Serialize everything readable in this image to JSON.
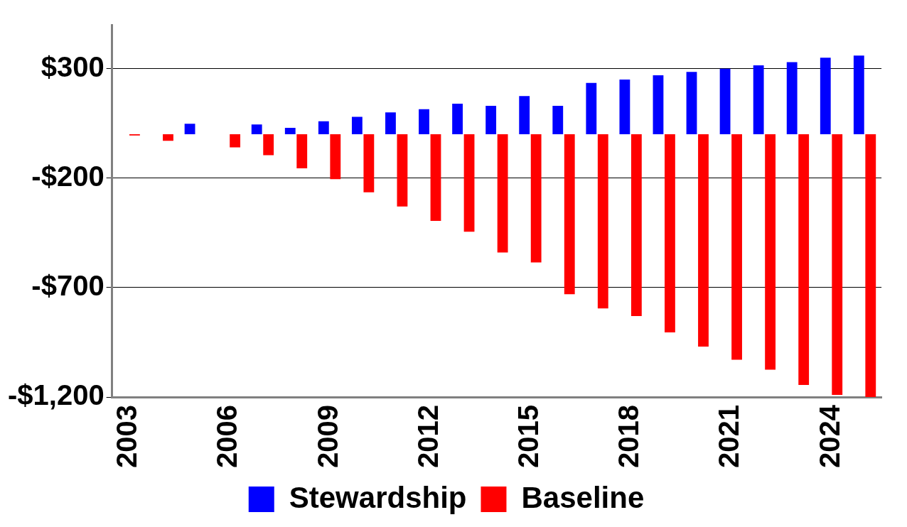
{
  "chart_data": {
    "type": "bar",
    "categories": [
      "2003",
      null,
      null,
      "2006",
      null,
      null,
      "2009",
      null,
      null,
      "2012",
      null,
      null,
      "2015",
      null,
      null,
      "2018",
      null,
      null,
      "2021",
      null,
      null,
      "2024",
      null
    ],
    "series": [
      {
        "name": "Stewardship",
        "color": "#0000ff",
        "values": [
          0,
          0,
          48,
          0,
          45,
          30,
          60,
          80,
          100,
          115,
          140,
          130,
          175,
          130,
          235,
          250,
          270,
          285,
          300,
          315,
          330,
          350,
          360
        ]
      },
      {
        "name": "Baseline",
        "color": "#ff0000",
        "values": [
          -5,
          -30,
          0,
          -60,
          -95,
          -155,
          -205,
          -265,
          -330,
          -395,
          -445,
          -540,
          -585,
          -730,
          -795,
          -830,
          -905,
          -970,
          -1030,
          -1075,
          -1145,
          -1190,
          -1200
        ]
      }
    ],
    "ylim": [
      -1200,
      500
    ],
    "yticks": [
      {
        "value": 300,
        "label": "$300"
      },
      {
        "value": -200,
        "label": "-$200"
      },
      {
        "value": -700,
        "label": "-$700"
      },
      {
        "value": -1200,
        "label": "-$1,200"
      }
    ],
    "grid": "y",
    "legend": "bottom"
  }
}
